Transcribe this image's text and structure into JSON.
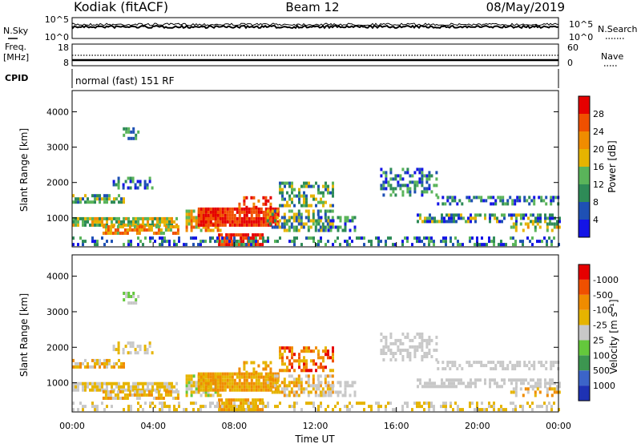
{
  "header": {
    "station": "Kodiak (fitACF)",
    "beam": "Beam 12",
    "date": "08/May/2019"
  },
  "top_panels": {
    "nsky_label": "N.Sky",
    "nsearch_label": "N.Search",
    "noise_ticks": [
      "10^5",
      "10^0"
    ],
    "freq_label": "Freq.",
    "freq_unit": "[MHz]",
    "freq_ticks": [
      "18",
      "8"
    ],
    "nave_label": "Nave",
    "nave_ticks": [
      "60",
      "0"
    ],
    "cpid_label": "CPID",
    "cpid_text": "normal (fast) 151 RF"
  },
  "chart_data": [
    {
      "type": "heatmap",
      "name": "power",
      "ylabel": "Slant Range [km]",
      "ylim": [
        180,
        4600
      ],
      "yticks": [
        "1000",
        "2000",
        "3000",
        "4000"
      ],
      "colorbar_label": "Power [dB]",
      "colorbar_ticks": [
        "4",
        "8",
        "12",
        "16",
        "20",
        "24",
        "28"
      ],
      "colors": [
        "#1414e6",
        "#1e50b4",
        "#2e8b57",
        "#5ab45a",
        "#e6b400",
        "#f08c00",
        "#f05000",
        "#e60000"
      ]
    },
    {
      "type": "heatmap",
      "name": "velocity",
      "ylabel": "Slant Range [km]",
      "xlabel": "Time UT",
      "xticks": [
        "00:00",
        "04:00",
        "08:00",
        "12:00",
        "16:00",
        "20:00",
        "00:00"
      ],
      "ylim": [
        180,
        4600
      ],
      "yticks": [
        "1000",
        "2000",
        "3000",
        "4000"
      ],
      "colorbar_label": "Velocity [m s⁻¹]",
      "colorbar_ticks": [
        "1000",
        "500",
        "100",
        "25",
        "-25",
        "-100",
        "-500",
        "-1000"
      ],
      "colors": [
        "#1e32b4",
        "#3c64c8",
        "#3c9650",
        "#64c83c",
        "#c8c8c8",
        "#e6b400",
        "#f08c00",
        "#f05000",
        "#e60000"
      ]
    }
  ]
}
